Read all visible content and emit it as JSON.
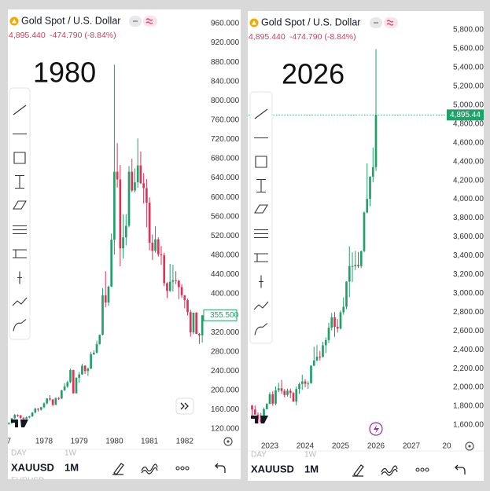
{
  "chart_data": [
    {
      "type": "candlestick",
      "title": "Gold Spot / U.S. Dollar",
      "quote_value": "4,895.440",
      "quote_change": "-474.790 (-8.84%)",
      "annotation": "1980",
      "up_color": "#22a06b",
      "down_color": "#e03158",
      "price_line": false,
      "categories": [
        "7",
        null,
        null,
        null,
        null,
        null,
        null,
        null,
        null,
        null,
        null,
        null,
        "1978",
        null,
        null,
        null,
        null,
        null,
        null,
        null,
        null,
        null,
        null,
        null,
        "1979",
        null,
        null,
        null,
        null,
        null,
        null,
        null,
        null,
        null,
        null,
        null,
        "1980",
        null,
        null,
        null,
        null,
        null,
        null,
        null,
        null,
        null,
        null,
        null,
        "1981",
        null,
        null,
        null,
        null,
        null,
        null,
        null,
        null,
        null,
        null,
        null,
        "1982",
        null,
        null,
        null,
        null,
        null,
        null
      ],
      "ohlc": [
        [
          130,
          134,
          129,
          132
        ],
        [
          132,
          143,
          131,
          142
        ],
        [
          142,
          151,
          141,
          149
        ],
        [
          149,
          150,
          145,
          148
        ],
        [
          148,
          149,
          141,
          143
        ],
        [
          143,
          145,
          138,
          141
        ],
        [
          141,
          146,
          140,
          144
        ],
        [
          144,
          147,
          142,
          146
        ],
        [
          146,
          155,
          145,
          154
        ],
        [
          154,
          164,
          152,
          162
        ],
        [
          162,
          163,
          156,
          160
        ],
        [
          160,
          166,
          158,
          165
        ],
        [
          165,
          175,
          163,
          173
        ],
        [
          173,
          184,
          171,
          183
        ],
        [
          183,
          190,
          178,
          181
        ],
        [
          181,
          182,
          167,
          170
        ],
        [
          170,
          185,
          169,
          184
        ],
        [
          184,
          186,
          180,
          183
        ],
        [
          183,
          201,
          182,
          200
        ],
        [
          200,
          215,
          199,
          208
        ],
        [
          208,
          220,
          205,
          217
        ],
        [
          217,
          245,
          215,
          242
        ],
        [
          242,
          243,
          193,
          194
        ],
        [
          194,
          227,
          193,
          226
        ],
        [
          226,
          238,
          216,
          233
        ],
        [
          233,
          255,
          232,
          251
        ],
        [
          251,
          252,
          234,
          240
        ],
        [
          240,
          247,
          230,
          245
        ],
        [
          245,
          280,
          244,
          275
        ],
        [
          275,
          283,
          273,
          278
        ],
        [
          278,
          303,
          276,
          296
        ],
        [
          296,
          316,
          294,
          315
        ],
        [
          315,
          412,
          314,
          397
        ],
        [
          397,
          447,
          372,
          382
        ],
        [
          382,
          417,
          375,
          415
        ],
        [
          415,
          525,
          414,
          512
        ],
        [
          512,
          875,
          481,
          653
        ],
        [
          653,
          712,
          620,
          637
        ],
        [
          637,
          667,
          457,
          494
        ],
        [
          494,
          565,
          473,
          517
        ],
        [
          517,
          565,
          500,
          541
        ],
        [
          541,
          665,
          538,
          653
        ],
        [
          653,
          680,
          611,
          614
        ],
        [
          614,
          660,
          610,
          631
        ],
        [
          631,
          722,
          620,
          666
        ],
        [
          666,
          695,
          628,
          629
        ],
        [
          629,
          650,
          587,
          619
        ],
        [
          619,
          638,
          538,
          589
        ],
        [
          589,
          600,
          490,
          506
        ],
        [
          506,
          523,
          470,
          489
        ],
        [
          489,
          540,
          485,
          513
        ],
        [
          513,
          517,
          477,
          482
        ],
        [
          482,
          499,
          460,
          480
        ],
        [
          480,
          485,
          416,
          422
        ],
        [
          422,
          424,
          391,
          406
        ],
        [
          406,
          462,
          404,
          425
        ],
        [
          425,
          460,
          405,
          428
        ],
        [
          428,
          447,
          420,
          427
        ],
        [
          427,
          429,
          389,
          414
        ],
        [
          414,
          420,
          391,
          397
        ],
        [
          397,
          397,
          370,
          387
        ],
        [
          387,
          390,
          355,
          362
        ],
        [
          362,
          367,
          311,
          320
        ],
        [
          320,
          361,
          316,
          361
        ],
        [
          361,
          362,
          318,
          317
        ],
        [
          317,
          319,
          296,
          314
        ],
        [
          314,
          356,
          299,
          355.5
        ]
      ],
      "ylim": [
        120,
        960
      ],
      "yticks": [
        {
          "value": 120,
          "label": "120.000"
        },
        {
          "value": 160,
          "label": "160.000"
        },
        {
          "value": 200,
          "label": "200.000"
        },
        {
          "value": 240,
          "label": "240.000"
        },
        {
          "value": 280,
          "label": "280.000"
        },
        {
          "value": 320,
          "label": "320.000"
        },
        {
          "value": 400,
          "label": "400.000"
        },
        {
          "value": 440,
          "label": "440.000"
        },
        {
          "value": 480,
          "label": "480.000"
        },
        {
          "value": 520,
          "label": "520.000"
        },
        {
          "value": 560,
          "label": "560.000"
        },
        {
          "value": 600,
          "label": "600.000"
        },
        {
          "value": 640,
          "label": "640.000"
        },
        {
          "value": 680,
          "label": "680.000"
        },
        {
          "value": 720,
          "label": "720.000"
        },
        {
          "value": 760,
          "label": "760.000"
        },
        {
          "value": 800,
          "label": "800.000"
        },
        {
          "value": 840,
          "label": "840.000"
        },
        {
          "value": 880,
          "label": "880.000"
        },
        {
          "value": 920,
          "label": "920.000"
        },
        {
          "value": 960,
          "label": "960.000"
        }
      ],
      "last_price": {
        "value": 355.5,
        "label": "355.500"
      },
      "footer": {
        "ghost": [
          "DAY",
          "1W"
        ],
        "symbol": "XAUUSD",
        "interval": "1M",
        "ghost_below": "EURUSD"
      }
    },
    {
      "type": "candlestick",
      "title": "Gold Spot / U.S. Dollar",
      "quote_value": "4,895.440",
      "quote_change": "-474.790 (-8.84%)",
      "annotation": "2026",
      "up_color": "#22a06b",
      "down_color": "#e03158",
      "price_line": true,
      "categories": [
        null,
        null,
        null,
        null,
        null,
        null,
        "2023",
        null,
        null,
        null,
        null,
        null,
        null,
        null,
        null,
        null,
        null,
        null,
        "2024",
        null,
        null,
        null,
        null,
        null,
        null,
        null,
        null,
        null,
        null,
        null,
        "2025",
        null,
        null,
        null,
        null,
        null,
        null,
        null,
        null,
        null,
        null,
        null,
        "2026",
        null,
        null,
        null,
        null,
        null,
        null,
        null,
        null,
        null,
        null,
        null,
        "2027",
        null,
        null,
        null,
        null,
        null,
        null,
        null,
        null,
        null,
        null,
        null,
        "20"
      ],
      "ohlc": [
        [
          1807,
          1814,
          1681,
          1765
        ],
        [
          1765,
          1807,
          1709,
          1711
        ],
        [
          1711,
          1735,
          1615,
          1661
        ],
        [
          1661,
          1730,
          1617,
          1633
        ],
        [
          1633,
          1786,
          1616,
          1768
        ],
        [
          1768,
          1833,
          1765,
          1824
        ],
        [
          1824,
          1949,
          1823,
          1928
        ],
        [
          1928,
          1959,
          1804,
          1827
        ],
        [
          1827,
          2009,
          1809,
          1969
        ],
        [
          1969,
          2049,
          1949,
          1990
        ],
        [
          1990,
          2079,
          1932,
          1963
        ],
        [
          1963,
          1984,
          1893,
          1919
        ],
        [
          1919,
          1987,
          1902,
          1965
        ],
        [
          1965,
          1987,
          1885,
          1940
        ],
        [
          1940,
          1953,
          1846,
          1849
        ],
        [
          1849,
          2009,
          1810,
          1983
        ],
        [
          1983,
          2052,
          1931,
          2036
        ],
        [
          2036,
          2135,
          1973,
          2063
        ],
        [
          2063,
          2088,
          2002,
          2039
        ],
        [
          2039,
          2065,
          1984,
          2044
        ],
        [
          2044,
          2236,
          2039,
          2230
        ],
        [
          2230,
          2432,
          2228,
          2286
        ],
        [
          2286,
          2450,
          2277,
          2327
        ],
        [
          2327,
          2388,
          2286,
          2326
        ],
        [
          2326,
          2484,
          2318,
          2447
        ],
        [
          2447,
          2531,
          2364,
          2503
        ],
        [
          2503,
          2686,
          2472,
          2634
        ],
        [
          2634,
          2790,
          2604,
          2744
        ],
        [
          2744,
          2801,
          2537,
          2643
        ],
        [
          2643,
          2726,
          2583,
          2625
        ],
        [
          2625,
          2817,
          2614,
          2798
        ],
        [
          2798,
          2956,
          2772,
          2858
        ],
        [
          2858,
          3128,
          2833,
          3124
        ],
        [
          3124,
          3500,
          2957,
          3289
        ],
        [
          3289,
          3435,
          3121,
          3289
        ],
        [
          3289,
          3452,
          3247,
          3303
        ],
        [
          3303,
          3439,
          3268,
          3290
        ],
        [
          3290,
          3453,
          3268,
          3448
        ],
        [
          3448,
          3871,
          3436,
          3858
        ],
        [
          3858,
          4381,
          3850,
          4003
        ],
        [
          4003,
          4245,
          3927,
          4239
        ],
        [
          4239,
          4550,
          4180,
          4341
        ],
        [
          4341,
          5595,
          4300,
          4895.44
        ],
        null,
        null,
        null,
        null,
        null,
        null,
        null,
        null,
        null,
        null,
        null,
        null,
        null,
        null,
        null,
        null,
        null,
        null,
        null,
        null,
        null,
        null,
        null,
        null
      ],
      "ylim": [
        1600,
        5800
      ],
      "yticks": [
        {
          "value": 1600,
          "label": "1,600.00"
        },
        {
          "value": 1800,
          "label": "1,800.00"
        },
        {
          "value": 2000,
          "label": "2,000.00"
        },
        {
          "value": 2200,
          "label": "2,200.00"
        },
        {
          "value": 2400,
          "label": "2,400.00"
        },
        {
          "value": 2600,
          "label": "2,600.00"
        },
        {
          "value": 2800,
          "label": "2,800.00"
        },
        {
          "value": 3000,
          "label": "3,000.00"
        },
        {
          "value": 3200,
          "label": "3,200.00"
        },
        {
          "value": 3400,
          "label": "3,400.00"
        },
        {
          "value": 3600,
          "label": "3,600.00"
        },
        {
          "value": 3800,
          "label": "3,800.00"
        },
        {
          "value": 4000,
          "label": "4,000.00"
        },
        {
          "value": 4200,
          "label": "4,200.00"
        },
        {
          "value": 4400,
          "label": "4,400.00"
        },
        {
          "value": 4600,
          "label": "4,600.00"
        },
        {
          "value": 4800,
          "label": "4,800.00"
        },
        {
          "value": 5000,
          "label": "5,000.00"
        },
        {
          "value": 5200,
          "label": "5,200.00"
        },
        {
          "value": 5400,
          "label": "5,400.00"
        },
        {
          "value": 5600,
          "label": "5,600.00"
        },
        {
          "value": 5800,
          "label": "5,800.00"
        }
      ],
      "last_price": {
        "value": 4895.44,
        "label": "4,895.44"
      },
      "footer": {
        "ghost": [
          "DAY",
          "1W"
        ],
        "symbol": "XAUUSD",
        "interval": "1M"
      }
    }
  ]
}
